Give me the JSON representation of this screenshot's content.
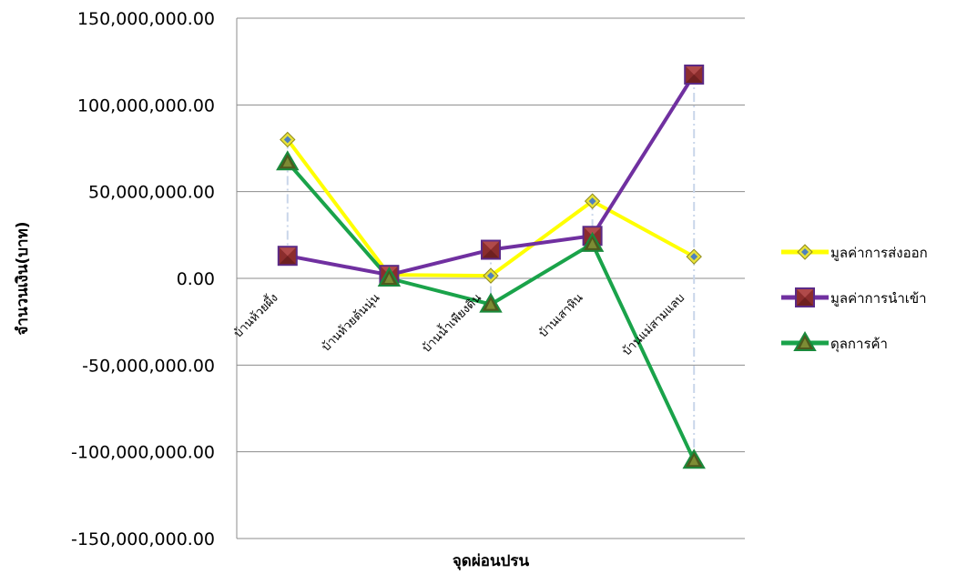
{
  "chart_data": {
    "type": "line",
    "xlabel": "จุดผ่อนปรน",
    "ylabel": "จำนวนเงิน(บาท)",
    "ylim": [
      -150000000,
      150000000
    ],
    "y_ticks": [
      150000000,
      100000000,
      50000000,
      0,
      -50000000,
      -100000000,
      -150000000
    ],
    "y_tick_labels": [
      "150,000,000.00",
      "100,000,000.00",
      "50,000,000.00",
      "0.00",
      "-50,000,000.00",
      "-100,000,000.00",
      "-150,000,000.00"
    ],
    "grid": true,
    "legend_position": "right",
    "categories": [
      "บ้านห้วยผึ้ง",
      "บ้านห้วยต้นนุ่น",
      "บ้านน้ำเพียงดิน",
      "บ้านเสาหิน",
      "บ้านแม่สามแลบ"
    ],
    "series": [
      {
        "name": "มูลค่าการส่งออก",
        "color": "#ffff00",
        "marker": "diamond",
        "values": [
          80000000,
          2000000,
          1500000,
          44500000,
          12500000
        ]
      },
      {
        "name": "มูลค่าการนำเข้า",
        "color": "#7030a0",
        "marker": "square",
        "values": [
          13000000,
          2000000,
          16500000,
          24500000,
          117500000
        ]
      },
      {
        "name": "ดุลการค้า",
        "color": "#1aa34a",
        "marker": "triangle",
        "values": [
          67000000,
          0,
          -15000000,
          20000000,
          -105000000
        ]
      }
    ]
  }
}
